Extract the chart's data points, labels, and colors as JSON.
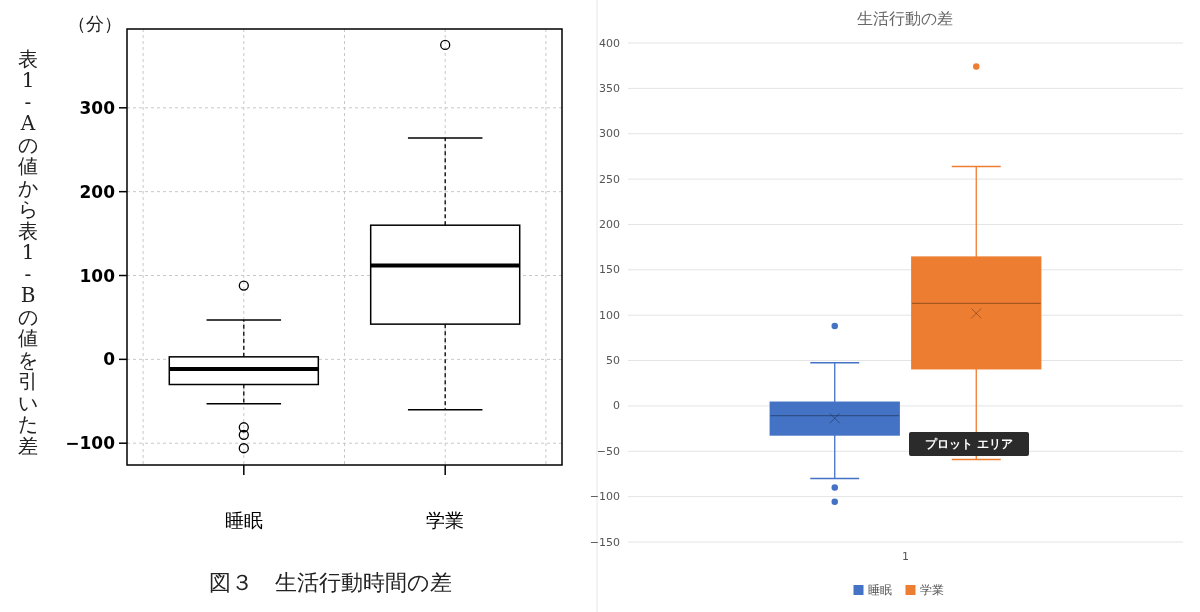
{
  "chart_data": [
    {
      "type": "box",
      "title": "図３　生活行動時間の差",
      "ylabel": "表1-Aの値から表1-Bの値を引いた差",
      "annotations": [
        "（分）"
      ],
      "categories": [
        "睡眠",
        "学業"
      ],
      "boxes": [
        {
          "low": -53,
          "q1": -30,
          "median": -11.5,
          "q3": 3,
          "high": 47,
          "outliers": [
            88,
            -81,
            -90,
            -106
          ]
        },
        {
          "low": -60,
          "q1": 42,
          "median": 112,
          "q3": 160,
          "high": 264,
          "outliers": [
            375
          ]
        }
      ],
      "ylim": [
        -126,
        394
      ],
      "yticks": [
        -100,
        0,
        100,
        200,
        300
      ],
      "grid": true,
      "line_style": "dashed",
      "marker": "circle"
    },
    {
      "type": "box",
      "title": "生活行動の差",
      "categories": [
        "1"
      ],
      "series": [
        {
          "name": "睡眠",
          "color": "#4472c4",
          "boxes": [
            {
              "low": -80,
              "q1": -32,
              "median": -10.6,
              "q3": 4,
              "high": 47.5,
              "mean": -13.6,
              "outliers": [
                88,
                -90,
                -105.6
              ]
            }
          ]
        },
        {
          "name": "学業",
          "color": "#ed7d31",
          "boxes": [
            {
              "low": -59,
              "q1": 41,
              "median": 113,
              "q3": 164,
              "high": 264,
              "mean": 102,
              "outliers": [
                374
              ]
            }
          ]
        }
      ],
      "ylim": [
        -150,
        400
      ],
      "yticks": [
        -150,
        -100,
        -50,
        0,
        50,
        100,
        150,
        200,
        250,
        300,
        350,
        400
      ],
      "grid": "y",
      "legend": "bottom",
      "marker": "circle",
      "annotations": [
        "プロット エリア"
      ]
    }
  ]
}
